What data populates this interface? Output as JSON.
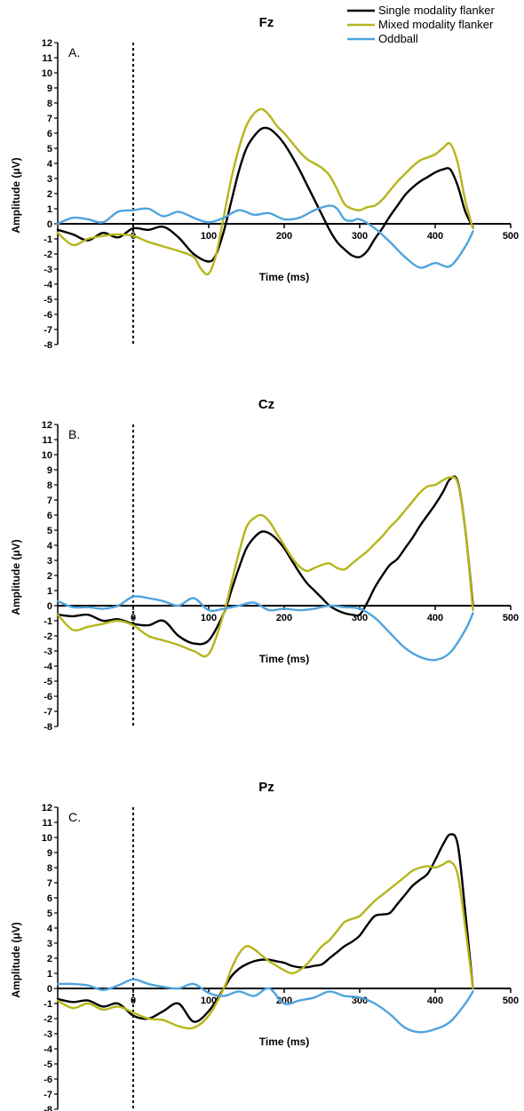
{
  "legend": {
    "items": [
      {
        "label": "Single modality flanker",
        "color": "#000000"
      },
      {
        "label": "Mixed modality flanker",
        "color": "#b5b51a"
      },
      {
        "label": "Oddball",
        "color": "#4ea3dd"
      }
    ]
  },
  "chart_data": [
    {
      "type": "line",
      "title": "Fz",
      "panel_label": "A.",
      "xlabel": "Time (ms)",
      "ylabel": "Amplitude (μV)",
      "xlim": [
        -100,
        500
      ],
      "ylim": [
        -8,
        12
      ],
      "xticks": [
        0,
        100,
        200,
        300,
        400,
        500
      ],
      "yticks": [
        12,
        11,
        10,
        9,
        8,
        7,
        6,
        5,
        4,
        3,
        2,
        1,
        0,
        -1,
        -2,
        -3,
        -4,
        -5,
        -6,
        -7,
        -8
      ],
      "series": [
        {
          "name": "Single modality flanker",
          "color": "#000000",
          "x": [
            -100,
            -80,
            -60,
            -40,
            -20,
            0,
            20,
            40,
            60,
            80,
            100,
            110,
            120,
            130,
            140,
            150,
            160,
            170,
            180,
            190,
            200,
            210,
            220,
            230,
            240,
            250,
            260,
            270,
            280,
            290,
            300,
            310,
            320,
            330,
            340,
            350,
            360,
            370,
            380,
            390,
            400,
            410,
            420,
            430,
            440,
            450
          ],
          "y": [
            -0.4,
            -0.7,
            -1.1,
            -0.6,
            -0.9,
            -0.3,
            -0.4,
            -0.2,
            -0.9,
            -2.0,
            -2.5,
            -2.0,
            -0.5,
            1.5,
            3.5,
            5.0,
            5.8,
            6.3,
            6.3,
            5.9,
            5.3,
            4.5,
            3.6,
            2.6,
            1.6,
            0.6,
            -0.4,
            -1.2,
            -1.7,
            -2.1,
            -2.2,
            -1.8,
            -1.0,
            -0.3,
            0.5,
            1.2,
            1.9,
            2.4,
            2.8,
            3.1,
            3.4,
            3.6,
            3.6,
            2.5,
            0.8,
            -0.2
          ]
        },
        {
          "name": "Mixed modality flanker",
          "color": "#b5b51a",
          "x": [
            -100,
            -80,
            -60,
            -40,
            -20,
            0,
            20,
            40,
            60,
            80,
            90,
            100,
            110,
            120,
            130,
            140,
            150,
            160,
            170,
            180,
            190,
            200,
            210,
            220,
            230,
            240,
            250,
            260,
            270,
            280,
            290,
            300,
            310,
            320,
            330,
            340,
            350,
            360,
            370,
            380,
            390,
            400,
            410,
            420,
            430,
            440,
            450
          ],
          "y": [
            -0.6,
            -1.4,
            -1.0,
            -0.8,
            -0.7,
            -0.8,
            -1.2,
            -1.5,
            -1.8,
            -2.2,
            -3.0,
            -3.3,
            -2.0,
            0.5,
            3.0,
            5.0,
            6.5,
            7.3,
            7.6,
            7.2,
            6.5,
            6.0,
            5.4,
            4.8,
            4.3,
            4.0,
            3.7,
            3.2,
            2.3,
            1.3,
            1.0,
            0.9,
            1.1,
            1.2,
            1.6,
            2.2,
            2.8,
            3.3,
            3.8,
            4.2,
            4.4,
            4.6,
            5.0,
            5.3,
            4.0,
            1.5,
            -0.3
          ]
        },
        {
          "name": "Oddball",
          "color": "#4ea3dd",
          "x": [
            -100,
            -80,
            -60,
            -40,
            -20,
            0,
            20,
            40,
            60,
            80,
            100,
            120,
            140,
            160,
            180,
            200,
            220,
            240,
            260,
            270,
            280,
            290,
            300,
            320,
            340,
            360,
            380,
            400,
            420,
            440,
            450
          ],
          "y": [
            0.0,
            0.4,
            0.3,
            0.1,
            0.8,
            0.9,
            1.0,
            0.5,
            0.8,
            0.4,
            0.1,
            0.4,
            0.9,
            0.6,
            0.7,
            0.3,
            0.4,
            0.9,
            1.2,
            1.0,
            0.3,
            0.2,
            0.3,
            -0.3,
            -1.2,
            -2.2,
            -2.9,
            -2.6,
            -2.8,
            -1.5,
            -0.5
          ]
        }
      ]
    },
    {
      "type": "line",
      "title": "Cz",
      "panel_label": "B.",
      "xlabel": "Time (ms)",
      "ylabel": "Amplitude (μV)",
      "xlim": [
        -100,
        500
      ],
      "ylim": [
        -8,
        12
      ],
      "xticks": [
        0,
        100,
        200,
        300,
        400,
        500
      ],
      "yticks": [
        12,
        11,
        10,
        9,
        8,
        7,
        6,
        5,
        4,
        3,
        2,
        1,
        0,
        -1,
        -2,
        -3,
        -4,
        -5,
        -6,
        -7,
        -8
      ],
      "series": [
        {
          "name": "Single modality flanker",
          "color": "#000000",
          "x": [
            -100,
            -80,
            -60,
            -40,
            -20,
            0,
            20,
            40,
            60,
            80,
            100,
            120,
            130,
            140,
            150,
            160,
            170,
            180,
            190,
            200,
            210,
            220,
            230,
            240,
            250,
            260,
            270,
            280,
            290,
            300,
            310,
            320,
            330,
            340,
            350,
            360,
            370,
            380,
            390,
            400,
            410,
            420,
            430,
            440,
            450
          ],
          "y": [
            -0.6,
            -0.7,
            -0.6,
            -1.0,
            -0.9,
            -1.2,
            -1.3,
            -1.0,
            -2.0,
            -2.5,
            -2.3,
            -0.5,
            1.0,
            2.5,
            3.8,
            4.5,
            4.9,
            4.8,
            4.4,
            3.8,
            3.0,
            2.2,
            1.5,
            1.0,
            0.5,
            0.0,
            -0.3,
            -0.5,
            -0.6,
            -0.6,
            0.2,
            1.2,
            2.0,
            2.7,
            3.1,
            3.8,
            4.5,
            5.3,
            6.0,
            6.7,
            7.5,
            8.4,
            8.2,
            5.0,
            0.0
          ]
        },
        {
          "name": "Mixed modality flanker",
          "color": "#b5b51a",
          "x": [
            -100,
            -80,
            -60,
            -40,
            -20,
            0,
            20,
            40,
            60,
            80,
            100,
            120,
            130,
            140,
            150,
            160,
            170,
            180,
            190,
            200,
            210,
            220,
            230,
            240,
            250,
            260,
            270,
            280,
            290,
            300,
            310,
            320,
            330,
            340,
            350,
            360,
            370,
            380,
            390,
            400,
            410,
            420,
            430,
            440,
            450
          ],
          "y": [
            -0.6,
            -1.6,
            -1.4,
            -1.2,
            -1.0,
            -1.3,
            -2.0,
            -2.3,
            -2.6,
            -3.0,
            -3.2,
            -0.5,
            1.5,
            3.5,
            5.2,
            5.8,
            6.0,
            5.6,
            4.8,
            4.0,
            3.2,
            2.6,
            2.3,
            2.5,
            2.7,
            2.8,
            2.5,
            2.4,
            2.8,
            3.2,
            3.6,
            4.1,
            4.6,
            5.2,
            5.7,
            6.3,
            6.9,
            7.5,
            7.9,
            8.0,
            8.3,
            8.5,
            8.1,
            5.0,
            -0.3
          ]
        },
        {
          "name": "Oddball",
          "color": "#4ea3dd",
          "x": [
            -100,
            -80,
            -60,
            -40,
            -20,
            0,
            20,
            40,
            60,
            80,
            100,
            120,
            140,
            160,
            180,
            200,
            220,
            240,
            260,
            280,
            300,
            320,
            340,
            360,
            380,
            400,
            420,
            440,
            450
          ],
          "y": [
            0.3,
            -0.1,
            -0.1,
            -0.2,
            0.0,
            0.6,
            0.5,
            0.3,
            0.0,
            0.5,
            -0.3,
            -0.2,
            0.0,
            0.2,
            -0.3,
            -0.2,
            -0.3,
            -0.2,
            0.0,
            -0.1,
            -0.2,
            -0.8,
            -1.8,
            -2.8,
            -3.4,
            -3.6,
            -3.1,
            -1.6,
            -0.5
          ]
        }
      ]
    },
    {
      "type": "line",
      "title": "Pz",
      "panel_label": "C.",
      "xlabel": "Time (ms)",
      "ylabel": "Amplitude (μV)",
      "xlim": [
        -100,
        500
      ],
      "ylim": [
        -8,
        12
      ],
      "xticks": [
        0,
        100,
        200,
        300,
        400,
        500
      ],
      "yticks": [
        12,
        11,
        10,
        9,
        8,
        7,
        6,
        5,
        4,
        3,
        2,
        1,
        0,
        -1,
        -2,
        -3,
        -4,
        -5,
        -6,
        -7,
        -8
      ],
      "series": [
        {
          "name": "Single modality flanker",
          "color": "#000000",
          "x": [
            -100,
            -80,
            -60,
            -40,
            -20,
            0,
            20,
            40,
            60,
            80,
            100,
            120,
            130,
            140,
            150,
            160,
            170,
            180,
            190,
            200,
            210,
            220,
            230,
            240,
            250,
            260,
            270,
            280,
            290,
            300,
            310,
            320,
            330,
            340,
            350,
            360,
            370,
            380,
            390,
            400,
            410,
            420,
            430,
            440,
            450
          ],
          "y": [
            -0.7,
            -0.9,
            -0.8,
            -1.2,
            -1.0,
            -1.8,
            -2.0,
            -1.5,
            -1.0,
            -2.2,
            -1.5,
            0.0,
            0.8,
            1.3,
            1.6,
            1.8,
            1.9,
            1.9,
            1.8,
            1.7,
            1.5,
            1.4,
            1.4,
            1.5,
            1.6,
            2.0,
            2.4,
            2.8,
            3.1,
            3.5,
            4.2,
            4.8,
            4.9,
            5.0,
            5.6,
            6.2,
            6.8,
            7.2,
            7.6,
            8.5,
            9.5,
            10.2,
            9.5,
            5.0,
            0.0
          ]
        },
        {
          "name": "Mixed modality flanker",
          "color": "#b5b51a",
          "x": [
            -100,
            -80,
            -60,
            -40,
            -20,
            0,
            20,
            40,
            60,
            80,
            100,
            120,
            130,
            140,
            150,
            160,
            170,
            180,
            190,
            200,
            210,
            220,
            230,
            240,
            250,
            260,
            270,
            280,
            290,
            300,
            310,
            320,
            330,
            340,
            350,
            360,
            370,
            380,
            390,
            400,
            410,
            420,
            430,
            440,
            450
          ],
          "y": [
            -0.8,
            -1.3,
            -1.0,
            -1.4,
            -1.2,
            -1.6,
            -2.0,
            -2.1,
            -2.5,
            -2.6,
            -1.8,
            0.0,
            1.3,
            2.3,
            2.8,
            2.6,
            2.2,
            1.8,
            1.5,
            1.2,
            1.0,
            1.2,
            1.6,
            2.2,
            2.8,
            3.2,
            3.8,
            4.4,
            4.6,
            4.8,
            5.3,
            5.8,
            6.2,
            6.6,
            7.0,
            7.4,
            7.8,
            8.0,
            8.1,
            8.0,
            8.2,
            8.4,
            7.5,
            4.0,
            0.0
          ]
        },
        {
          "name": "Oddball",
          "color": "#4ea3dd",
          "x": [
            -100,
            -80,
            -60,
            -40,
            -20,
            0,
            20,
            40,
            60,
            80,
            100,
            120,
            140,
            160,
            180,
            200,
            220,
            240,
            260,
            280,
            300,
            320,
            340,
            360,
            380,
            400,
            420,
            440,
            450
          ],
          "y": [
            0.3,
            0.3,
            0.2,
            -0.1,
            0.2,
            0.6,
            0.3,
            0.1,
            0.0,
            0.3,
            -0.3,
            -0.5,
            -0.2,
            -0.5,
            0.0,
            -1.0,
            -0.8,
            -0.6,
            -0.2,
            -0.5,
            -0.6,
            -1.0,
            -1.7,
            -2.6,
            -2.9,
            -2.7,
            -2.2,
            -1.0,
            -0.2
          ]
        }
      ]
    }
  ]
}
